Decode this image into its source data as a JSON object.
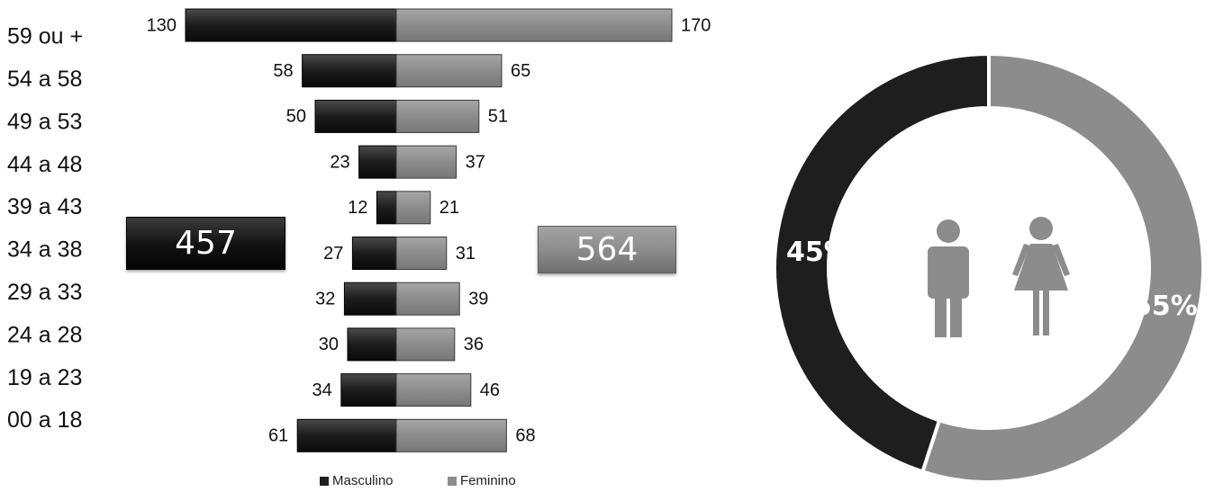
{
  "chart_data": [
    {
      "type": "bar",
      "orientation": "horizontal-diverging",
      "categories": [
        "59 ou +",
        "54 a 58",
        "49 a 53",
        "44 a 48",
        "39 a 43",
        "34 a 38",
        "29 a 33",
        "24 a 28",
        "19 a 23",
        "00 a 18"
      ],
      "series": [
        {
          "name": "Masculino",
          "values": [
            130,
            58,
            50,
            23,
            12,
            27,
            32,
            30,
            34,
            61
          ],
          "color": "#1e1e1e"
        },
        {
          "name": "Feminino",
          "values": [
            170,
            65,
            51,
            37,
            21,
            31,
            39,
            36,
            46,
            68
          ],
          "color": "#8c8c8c"
        }
      ],
      "totals": {
        "male": "457",
        "female": "564"
      },
      "legend": "bottom-center"
    },
    {
      "type": "pie",
      "style": "donut",
      "labels": [
        "45%",
        "55%"
      ],
      "values": [
        45,
        55
      ],
      "colors": [
        "#1e1e1e",
        "#8c8c8c"
      ],
      "icons": [
        "male-icon",
        "female-icon"
      ]
    }
  ]
}
